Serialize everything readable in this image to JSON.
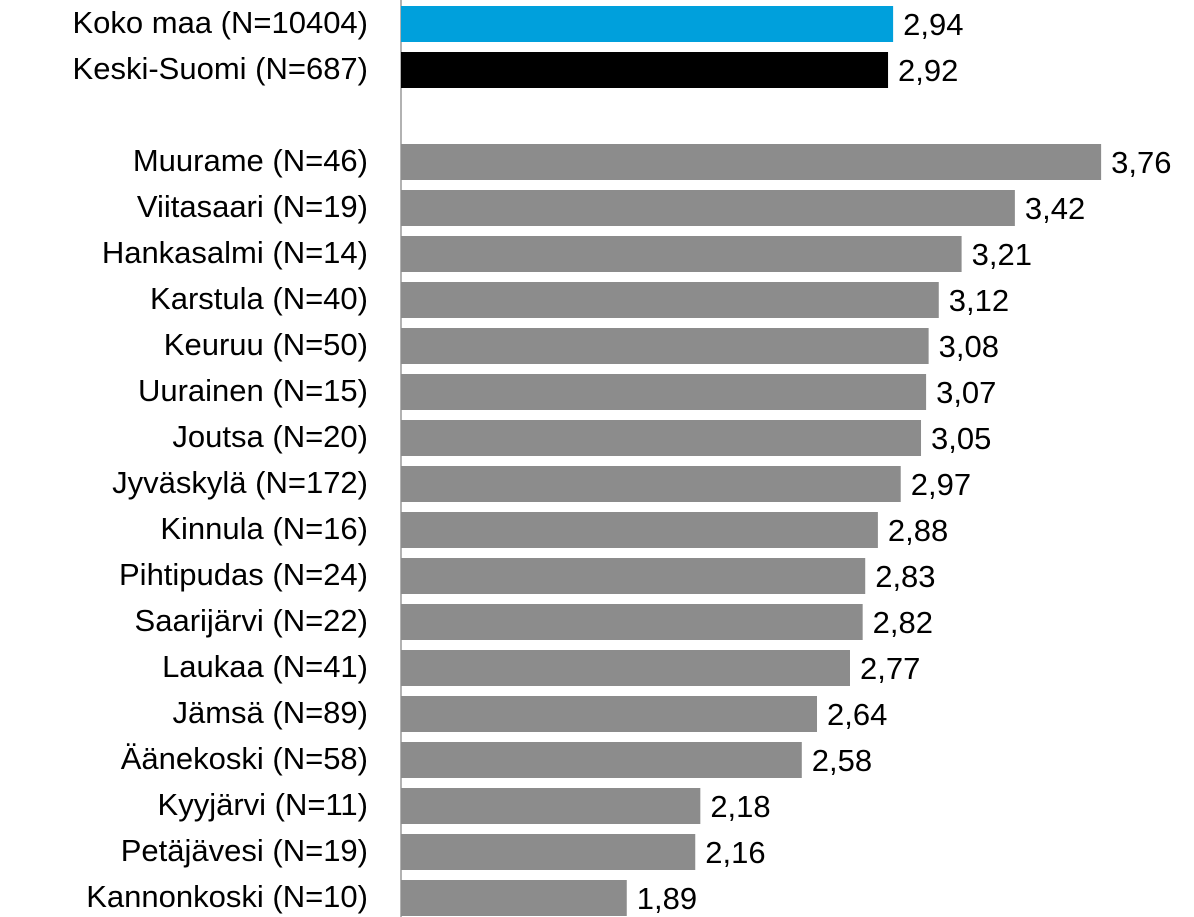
{
  "chart_data": {
    "type": "bar",
    "orientation": "horizontal",
    "categories": [
      "Koko maa (N=10404)",
      "Keski-Suomi (N=687)",
      null,
      "Muurame (N=46)",
      "Viitasaari (N=19)",
      "Hankasalmi (N=14)",
      "Karstula (N=40)",
      "Keuruu (N=50)",
      "Uurainen (N=15)",
      "Joutsa (N=20)",
      "Jyväskylä (N=172)",
      "Kinnula (N=16)",
      "Pihtipudas (N=24)",
      "Saarijärvi (N=22)",
      "Laukaa (N=41)",
      "Jämsä (N=89)",
      "Äänekoski (N=58)",
      "Kyyjärvi (N=11)",
      "Petäjävesi (N=19)",
      "Kannonkoski (N=10)"
    ],
    "values": [
      2.94,
      2.92,
      null,
      3.76,
      3.42,
      3.21,
      3.12,
      3.08,
      3.07,
      3.05,
      2.97,
      2.88,
      2.83,
      2.82,
      2.77,
      2.64,
      2.58,
      2.18,
      2.16,
      1.89
    ],
    "value_labels": [
      "2,94",
      "2,92",
      null,
      "3,76",
      "3,42",
      "3,21",
      "3,12",
      "3,08",
      "3,07",
      "3,05",
      "2,97",
      "2,88",
      "2,83",
      "2,82",
      "2,77",
      "2,64",
      "2,58",
      "2,18",
      "2,16",
      "1,89"
    ],
    "colors": [
      "#00a0dc",
      "#000000",
      null,
      "#8c8c8c",
      "#8c8c8c",
      "#8c8c8c",
      "#8c8c8c",
      "#8c8c8c",
      "#8c8c8c",
      "#8c8c8c",
      "#8c8c8c",
      "#8c8c8c",
      "#8c8c8c",
      "#8c8c8c",
      "#8c8c8c",
      "#8c8c8c",
      "#8c8c8c",
      "#8c8c8c",
      "#8c8c8c",
      "#8c8c8c"
    ],
    "xlim": [
      1,
      4
    ]
  }
}
